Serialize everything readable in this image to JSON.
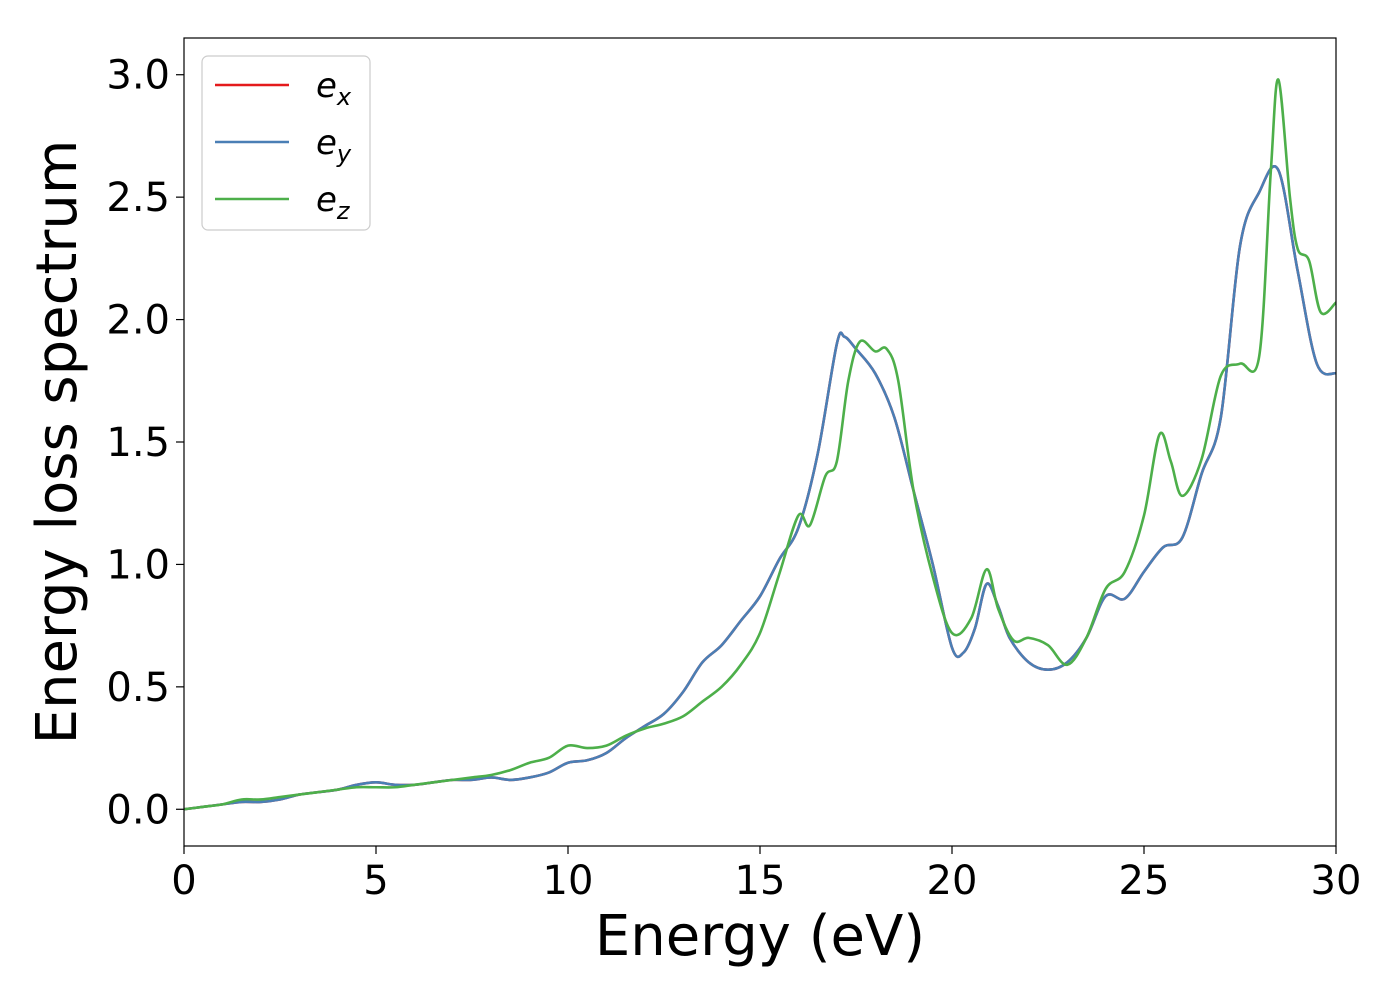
{
  "chart_data": {
    "type": "line",
    "title": "",
    "xlabel": "Energy (eV)",
    "ylabel": "Energy loss spectrum",
    "xlim": [
      0,
      30
    ],
    "ylim": [
      -0.15,
      3.15
    ],
    "xticks": [
      "0",
      "5",
      "10",
      "15",
      "20",
      "25",
      "30"
    ],
    "xtick_values": [
      0,
      5,
      10,
      15,
      20,
      25,
      30
    ],
    "yticks": [
      "0.0",
      "0.5",
      "1.0",
      "1.5",
      "2.0",
      "2.5",
      "3.0"
    ],
    "ytick_values": [
      0,
      0.5,
      1.0,
      1.5,
      2.0,
      2.5,
      3.0
    ],
    "grid": false,
    "legend_position": "top-left",
    "series": [
      {
        "name": "e_x",
        "legend_base": "e",
        "legend_sub": "x",
        "color": "#e41a1c",
        "points": [
          [
            0,
            0
          ],
          [
            0.5,
            0.01
          ],
          [
            1,
            0.02
          ],
          [
            1.5,
            0.03
          ],
          [
            2,
            0.03
          ],
          [
            2.5,
            0.04
          ],
          [
            3,
            0.06
          ],
          [
            3.5,
            0.07
          ],
          [
            4,
            0.08
          ],
          [
            4.5,
            0.1
          ],
          [
            5,
            0.11
          ],
          [
            5.5,
            0.1
          ],
          [
            6,
            0.1
          ],
          [
            6.5,
            0.11
          ],
          [
            7,
            0.12
          ],
          [
            7.5,
            0.12
          ],
          [
            8,
            0.13
          ],
          [
            8.5,
            0.12
          ],
          [
            9,
            0.13
          ],
          [
            9.5,
            0.15
          ],
          [
            10,
            0.19
          ],
          [
            10.5,
            0.2
          ],
          [
            11,
            0.23
          ],
          [
            11.5,
            0.29
          ],
          [
            12,
            0.34
          ],
          [
            12.5,
            0.39
          ],
          [
            13,
            0.48
          ],
          [
            13.5,
            0.6
          ],
          [
            14,
            0.67
          ],
          [
            14.5,
            0.77
          ],
          [
            15,
            0.87
          ],
          [
            15.5,
            1.02
          ],
          [
            16,
            1.15
          ],
          [
            16.5,
            1.45
          ],
          [
            17,
            1.9
          ],
          [
            17.2,
            1.93
          ],
          [
            17.5,
            1.88
          ],
          [
            18,
            1.78
          ],
          [
            18.5,
            1.6
          ],
          [
            19,
            1.3
          ],
          [
            19.5,
            1.0
          ],
          [
            20,
            0.66
          ],
          [
            20.3,
            0.64
          ],
          [
            20.6,
            0.74
          ],
          [
            20.9,
            0.92
          ],
          [
            21.2,
            0.83
          ],
          [
            21.5,
            0.7
          ],
          [
            22,
            0.6
          ],
          [
            22.5,
            0.57
          ],
          [
            23,
            0.6
          ],
          [
            23.5,
            0.7
          ],
          [
            24,
            0.87
          ],
          [
            24.5,
            0.86
          ],
          [
            25,
            0.97
          ],
          [
            25.5,
            1.07
          ],
          [
            26,
            1.11
          ],
          [
            26.5,
            1.37
          ],
          [
            27,
            1.6
          ],
          [
            27.5,
            2.3
          ],
          [
            28,
            2.52
          ],
          [
            28.5,
            2.61
          ],
          [
            29,
            2.2
          ],
          [
            29.5,
            1.82
          ],
          [
            30,
            1.78
          ]
        ]
      },
      {
        "name": "e_y",
        "legend_base": "e",
        "legend_sub": "y",
        "color": "#4a7fb5",
        "points": [
          [
            0,
            0
          ],
          [
            0.5,
            0.01
          ],
          [
            1,
            0.02
          ],
          [
            1.5,
            0.03
          ],
          [
            2,
            0.03
          ],
          [
            2.5,
            0.04
          ],
          [
            3,
            0.06
          ],
          [
            3.5,
            0.07
          ],
          [
            4,
            0.08
          ],
          [
            4.5,
            0.1
          ],
          [
            5,
            0.11
          ],
          [
            5.5,
            0.1
          ],
          [
            6,
            0.1
          ],
          [
            6.5,
            0.11
          ],
          [
            7,
            0.12
          ],
          [
            7.5,
            0.12
          ],
          [
            8,
            0.13
          ],
          [
            8.5,
            0.12
          ],
          [
            9,
            0.13
          ],
          [
            9.5,
            0.15
          ],
          [
            10,
            0.19
          ],
          [
            10.5,
            0.2
          ],
          [
            11,
            0.23
          ],
          [
            11.5,
            0.29
          ],
          [
            12,
            0.34
          ],
          [
            12.5,
            0.39
          ],
          [
            13,
            0.48
          ],
          [
            13.5,
            0.6
          ],
          [
            14,
            0.67
          ],
          [
            14.5,
            0.77
          ],
          [
            15,
            0.87
          ],
          [
            15.5,
            1.02
          ],
          [
            16,
            1.15
          ],
          [
            16.5,
            1.45
          ],
          [
            17,
            1.9
          ],
          [
            17.2,
            1.93
          ],
          [
            17.5,
            1.88
          ],
          [
            18,
            1.78
          ],
          [
            18.5,
            1.6
          ],
          [
            19,
            1.3
          ],
          [
            19.5,
            1.0
          ],
          [
            20,
            0.66
          ],
          [
            20.3,
            0.64
          ],
          [
            20.6,
            0.74
          ],
          [
            20.9,
            0.92
          ],
          [
            21.2,
            0.83
          ],
          [
            21.5,
            0.7
          ],
          [
            22,
            0.6
          ],
          [
            22.5,
            0.57
          ],
          [
            23,
            0.6
          ],
          [
            23.5,
            0.7
          ],
          [
            24,
            0.87
          ],
          [
            24.5,
            0.86
          ],
          [
            25,
            0.97
          ],
          [
            25.5,
            1.07
          ],
          [
            26,
            1.11
          ],
          [
            26.5,
            1.37
          ],
          [
            27,
            1.6
          ],
          [
            27.5,
            2.3
          ],
          [
            28,
            2.52
          ],
          [
            28.5,
            2.61
          ],
          [
            29,
            2.2
          ],
          [
            29.5,
            1.82
          ],
          [
            30,
            1.78
          ]
        ]
      },
      {
        "name": "e_z",
        "legend_base": "e",
        "legend_sub": "z",
        "color": "#4daf4a",
        "points": [
          [
            0,
            0
          ],
          [
            0.5,
            0.01
          ],
          [
            1,
            0.02
          ],
          [
            1.5,
            0.04
          ],
          [
            2,
            0.04
          ],
          [
            2.5,
            0.05
          ],
          [
            3,
            0.06
          ],
          [
            3.5,
            0.07
          ],
          [
            4,
            0.08
          ],
          [
            4.5,
            0.09
          ],
          [
            5,
            0.09
          ],
          [
            5.5,
            0.09
          ],
          [
            6,
            0.1
          ],
          [
            6.5,
            0.11
          ],
          [
            7,
            0.12
          ],
          [
            7.5,
            0.13
          ],
          [
            8,
            0.14
          ],
          [
            8.5,
            0.16
          ],
          [
            9,
            0.19
          ],
          [
            9.5,
            0.21
          ],
          [
            10,
            0.26
          ],
          [
            10.5,
            0.25
          ],
          [
            11,
            0.26
          ],
          [
            11.5,
            0.3
          ],
          [
            12,
            0.33
          ],
          [
            12.5,
            0.35
          ],
          [
            13,
            0.38
          ],
          [
            13.5,
            0.44
          ],
          [
            14,
            0.5
          ],
          [
            14.5,
            0.59
          ],
          [
            15,
            0.72
          ],
          [
            15.5,
            0.96
          ],
          [
            16,
            1.2
          ],
          [
            16.3,
            1.16
          ],
          [
            16.7,
            1.36
          ],
          [
            17,
            1.42
          ],
          [
            17.3,
            1.75
          ],
          [
            17.6,
            1.91
          ],
          [
            18,
            1.87
          ],
          [
            18.3,
            1.88
          ],
          [
            18.6,
            1.75
          ],
          [
            19,
            1.3
          ],
          [
            19.5,
            0.95
          ],
          [
            20,
            0.72
          ],
          [
            20.5,
            0.78
          ],
          [
            20.9,
            0.98
          ],
          [
            21.2,
            0.82
          ],
          [
            21.6,
            0.69
          ],
          [
            22,
            0.7
          ],
          [
            22.5,
            0.67
          ],
          [
            23,
            0.59
          ],
          [
            23.5,
            0.7
          ],
          [
            24,
            0.9
          ],
          [
            24.5,
            0.97
          ],
          [
            25,
            1.2
          ],
          [
            25.4,
            1.53
          ],
          [
            25.7,
            1.42
          ],
          [
            26,
            1.28
          ],
          [
            26.5,
            1.43
          ],
          [
            27,
            1.77
          ],
          [
            27.5,
            1.82
          ],
          [
            28,
            1.85
          ],
          [
            28.3,
            2.6
          ],
          [
            28.5,
            2.98
          ],
          [
            28.8,
            2.5
          ],
          [
            29,
            2.29
          ],
          [
            29.3,
            2.24
          ],
          [
            29.6,
            2.03
          ],
          [
            30,
            2.07
          ]
        ]
      }
    ]
  }
}
